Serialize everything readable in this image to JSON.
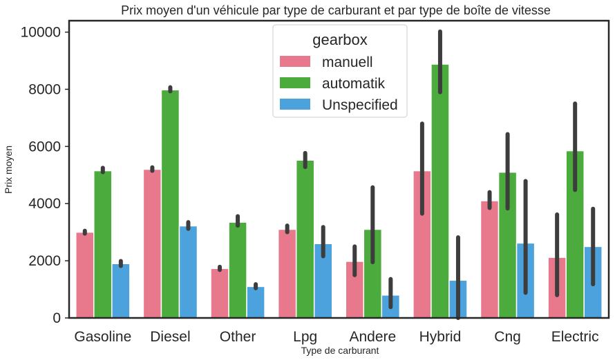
{
  "chart_data": {
    "type": "bar",
    "title": "Prix moyen d'un véhicule par type de carburant et par type de boîte de vitesse",
    "xlabel": "Type de carburant",
    "ylabel": "Prix moyen",
    "ylim": [
      0,
      10400
    ],
    "yticks": [
      0,
      2000,
      4000,
      6000,
      8000,
      10000
    ],
    "categories": [
      "Gasoline",
      "Diesel",
      "Other",
      "Lpg",
      "Andere",
      "Hybrid",
      "Cng",
      "Electric"
    ],
    "legend": {
      "title": "gearbox",
      "placement": "top-center"
    },
    "grid": false,
    "series": [
      {
        "name": "manuell",
        "color": "#e8798c",
        "values": [
          3000,
          5200,
          1730,
          3100,
          1980,
          5150,
          4100,
          2120
        ],
        "ci": [
          [
            2950,
            3050
          ],
          [
            5150,
            5270
          ],
          [
            1680,
            1790
          ],
          [
            3000,
            3230
          ],
          [
            1500,
            2500
          ],
          [
            3650,
            6800
          ],
          [
            3850,
            4400
          ],
          [
            800,
            3620
          ]
        ]
      },
      {
        "name": "automatik",
        "color": "#4bab3c",
        "values": [
          5150,
          7980,
          3350,
          5520,
          3100,
          8880,
          5100,
          5850
        ],
        "ci": [
          [
            5100,
            5250
          ],
          [
            7930,
            8070
          ],
          [
            3230,
            3560
          ],
          [
            5280,
            5770
          ],
          [
            1950,
            4570
          ],
          [
            7900,
            10020
          ],
          [
            3830,
            6430
          ],
          [
            4480,
            7500
          ]
        ]
      },
      {
        "name": "Unspecified",
        "color": "#4ca2dc",
        "values": [
          1900,
          3220,
          1100,
          2600,
          800,
          1320,
          2620,
          2500
        ],
        "ci": [
          [
            1820,
            1990
          ],
          [
            3120,
            3350
          ],
          [
            1040,
            1180
          ],
          [
            2160,
            3180
          ],
          [
            380,
            1360
          ],
          [
            0,
            2820
          ],
          [
            880,
            4790
          ],
          [
            1180,
            3820
          ]
        ]
      }
    ]
  }
}
